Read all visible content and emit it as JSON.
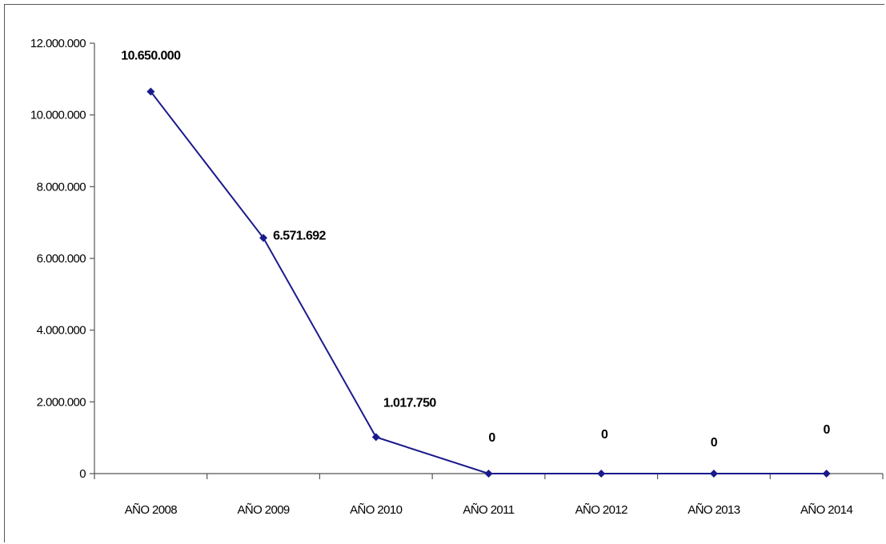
{
  "chart_data": {
    "type": "line",
    "categories": [
      "AÑO 2008",
      "AÑO 2009",
      "AÑO 2010",
      "AÑO 2011",
      "AÑO 2012",
      "AÑO 2013",
      "AÑO 2014"
    ],
    "values": [
      10650000,
      6571692,
      1017750,
      0,
      0,
      0,
      0
    ],
    "data_labels": [
      "10.650.000",
      "6.571.692",
      "1.017.750",
      "0",
      "0",
      "0",
      "0"
    ],
    "y_ticks": [
      0,
      2000000,
      4000000,
      6000000,
      8000000,
      10000000,
      12000000
    ],
    "y_tick_labels": [
      "0",
      "2.000.000",
      "4.000.000",
      "6.000.000",
      "8.000.000",
      "10.000.000",
      "12.000.000"
    ],
    "ylim": [
      0,
      12000000
    ],
    "grid": false,
    "legend": "none",
    "series_color": "#1a1a8c",
    "marker": "diamond"
  }
}
